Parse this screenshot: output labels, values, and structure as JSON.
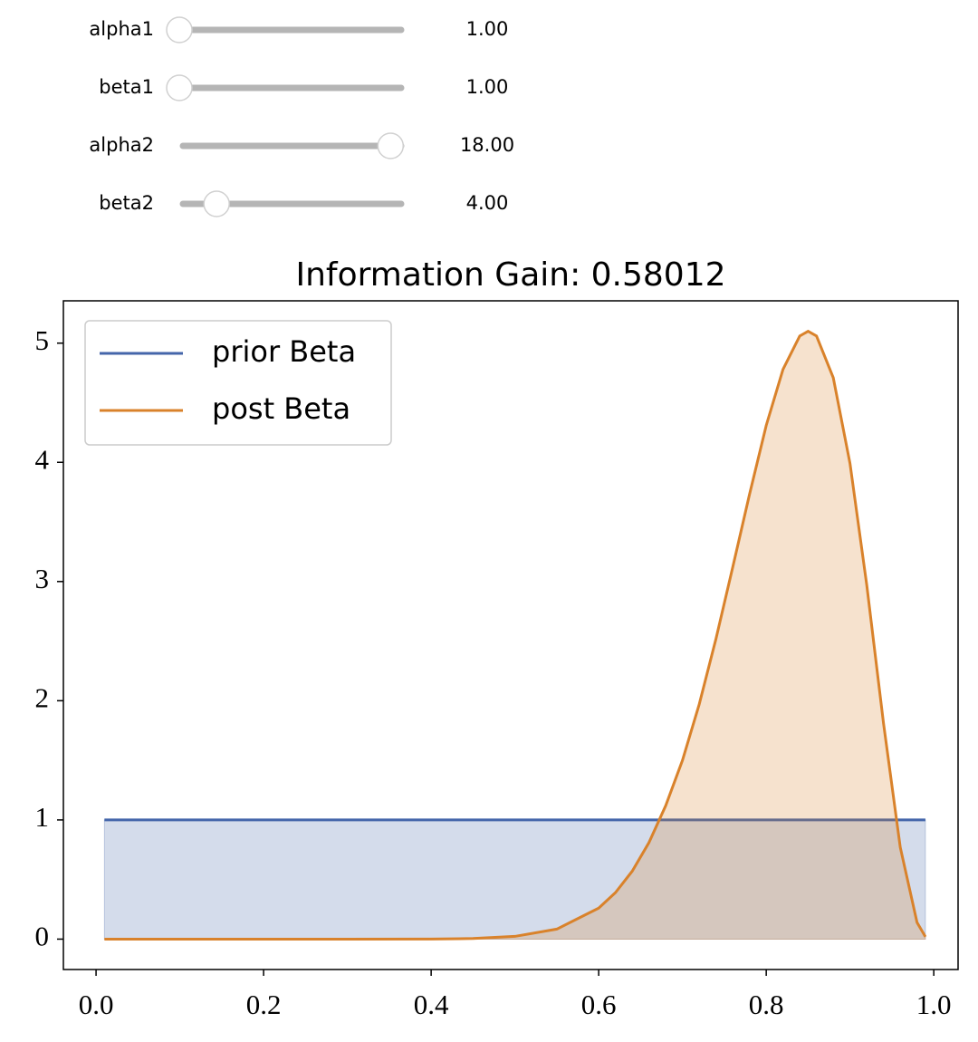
{
  "sliders": {
    "range": [
      1,
      19
    ],
    "items": [
      {
        "label": "alpha1",
        "value": 1,
        "value_label": "1.00"
      },
      {
        "label": "beta1",
        "value": 1,
        "value_label": "1.00"
      },
      {
        "label": "alpha2",
        "value": 18,
        "value_label": "18.00"
      },
      {
        "label": "beta2",
        "value": 4,
        "value_label": "4.00"
      }
    ]
  },
  "chart_data": {
    "type": "line",
    "title": "Information Gain: 0.58012",
    "xlim": [
      -0.039,
      1.029
    ],
    "ylim": [
      -0.255,
      5.355
    ],
    "xticks": [
      {
        "value": 0,
        "label": "0.0"
      },
      0.2,
      0.4,
      0.6,
      0.8,
      {
        "value": 1,
        "label": "1.0"
      }
    ],
    "yticks": [
      0,
      1,
      2,
      3,
      4,
      5
    ],
    "legend": "upper left",
    "fill": true,
    "series": [
      {
        "name": "prior Beta",
        "color": "#4466aa",
        "x": [
          0.01,
          0.99
        ],
        "values": [
          1,
          1
        ]
      },
      {
        "name": "post Beta",
        "color": "#d9822b",
        "x": [
          0.01,
          0.1,
          0.2,
          0.3,
          0.4,
          0.45,
          0.5,
          0.55,
          0.6,
          0.62,
          0.64,
          0.66,
          0.68,
          0.7,
          0.72,
          0.74,
          0.76,
          0.78,
          0.8,
          0.82,
          0.84,
          0.85,
          0.86,
          0.88,
          0.9,
          0.92,
          0.94,
          0.96,
          0.98,
          0.99
        ],
        "values": [
          0,
          0,
          0,
          0,
          0.001,
          0.005,
          0.023,
          0.084,
          0.26,
          0.39,
          0.57,
          0.81,
          1.12,
          1.5,
          1.97,
          2.52,
          3.12,
          3.73,
          4.31,
          4.78,
          5.06,
          5.1,
          5.06,
          4.71,
          3.99,
          2.97,
          1.81,
          0.77,
          0.14,
          0.02
        ]
      }
    ]
  }
}
